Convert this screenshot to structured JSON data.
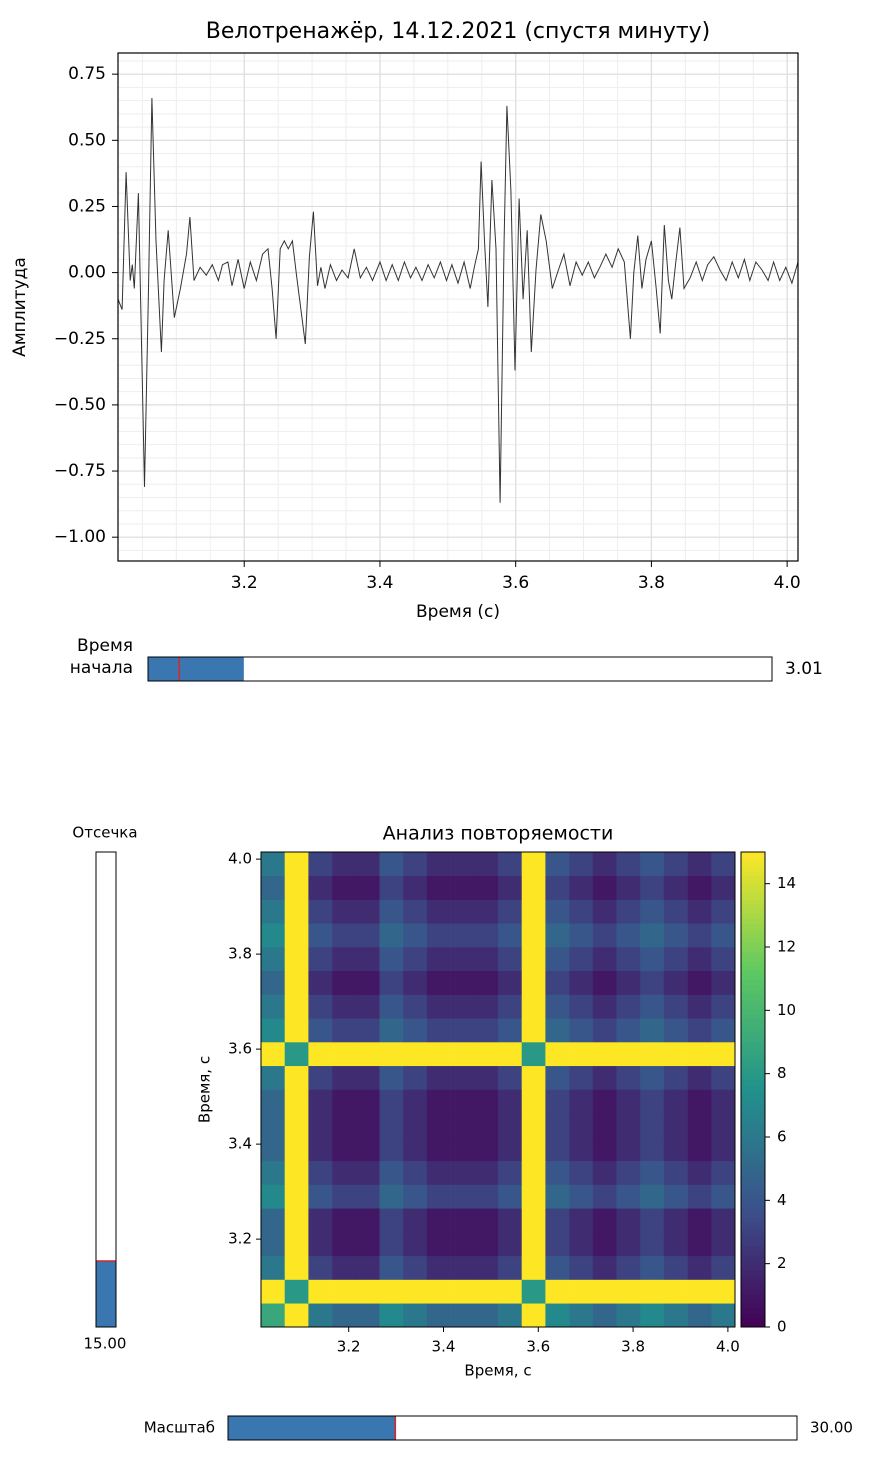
{
  "chart_data": [
    {
      "type": "line",
      "title": "Велотренажёр, 14.12.2021 (спустя минуту)",
      "x_label": "Время (с)",
      "y_label": "Амплитуда",
      "color": "#333333",
      "x": [
        3.014,
        3.02,
        3.026,
        3.032,
        3.035,
        3.038,
        3.044,
        3.053,
        3.059,
        3.064,
        3.07,
        3.078,
        3.082,
        3.088,
        3.097,
        3.106,
        3.115,
        3.12,
        3.126,
        3.135,
        3.144,
        3.153,
        3.162,
        3.168,
        3.176,
        3.182,
        3.191,
        3.2,
        3.209,
        3.218,
        3.227,
        3.235,
        3.241,
        3.247,
        3.253,
        3.259,
        3.265,
        3.271,
        3.277,
        3.282,
        3.29,
        3.296,
        3.302,
        3.308,
        3.313,
        3.319,
        3.327,
        3.336,
        3.344,
        3.353,
        3.362,
        3.371,
        3.38,
        3.389,
        3.4,
        3.409,
        3.418,
        3.427,
        3.436,
        3.445,
        3.453,
        3.462,
        3.471,
        3.48,
        3.489,
        3.498,
        3.506,
        3.515,
        3.524,
        3.533,
        3.539,
        3.545,
        3.549,
        3.554,
        3.559,
        3.565,
        3.571,
        3.577,
        3.583,
        3.587,
        3.593,
        3.599,
        3.605,
        3.611,
        3.617,
        3.623,
        3.63,
        3.637,
        3.645,
        3.654,
        3.663,
        3.671,
        3.68,
        3.689,
        3.698,
        3.707,
        3.716,
        3.724,
        3.733,
        3.742,
        3.751,
        3.76,
        3.769,
        3.774,
        3.78,
        3.786,
        3.792,
        3.8,
        3.807,
        3.813,
        3.819,
        3.825,
        3.83,
        3.836,
        3.842,
        3.848,
        3.857,
        3.866,
        3.875,
        3.883,
        3.892,
        3.901,
        3.91,
        3.919,
        3.928,
        3.937,
        3.945,
        3.954,
        3.963,
        3.972,
        3.98,
        3.989,
        3.998,
        4.007,
        4.016
      ],
      "y": [
        -0.1,
        -0.14,
        0.38,
        -0.03,
        0.03,
        -0.06,
        0.3,
        -0.81,
        -0.06,
        0.66,
        0.12,
        -0.3,
        -0.03,
        0.16,
        -0.17,
        -0.06,
        0.07,
        0.21,
        -0.03,
        0.02,
        -0.01,
        0.03,
        -0.03,
        0.03,
        0.04,
        -0.05,
        0.05,
        -0.06,
        0.04,
        -0.03,
        0.07,
        0.09,
        -0.06,
        -0.25,
        0.09,
        0.12,
        0.09,
        0.12,
        -0.01,
        -0.11,
        -0.27,
        0.06,
        0.23,
        -0.05,
        0.02,
        -0.06,
        0.03,
        -0.03,
        0.01,
        -0.02,
        0.09,
        -0.02,
        0.02,
        -0.03,
        0.04,
        -0.03,
        0.03,
        -0.03,
        0.04,
        -0.02,
        0.02,
        -0.03,
        0.03,
        -0.02,
        0.04,
        -0.03,
        0.03,
        -0.04,
        0.04,
        -0.06,
        0.02,
        0.09,
        0.42,
        0.12,
        -0.13,
        0.35,
        0.09,
        -0.87,
        0.12,
        0.63,
        0.31,
        -0.37,
        0.28,
        -0.1,
        0.16,
        -0.3,
        0.01,
        0.22,
        0.12,
        -0.06,
        0.01,
        0.07,
        -0.05,
        0.04,
        -0.01,
        0.04,
        -0.02,
        0.02,
        0.07,
        0.02,
        0.09,
        0.04,
        -0.25,
        0.0,
        0.14,
        -0.06,
        0.05,
        0.12,
        -0.06,
        -0.23,
        0.18,
        -0.03,
        -0.1,
        0.04,
        0.17,
        -0.06,
        -0.02,
        0.04,
        -0.03,
        0.03,
        0.06,
        0.01,
        -0.03,
        0.04,
        -0.02,
        0.05,
        -0.03,
        0.04,
        0.01,
        -0.03,
        0.04,
        -0.03,
        0.02,
        -0.04,
        0.04
      ],
      "xlim": [
        3.014,
        4.016
      ],
      "ylim": [
        -1.09,
        0.83
      ],
      "xticks": [
        3.2,
        3.4,
        3.6,
        3.8,
        {
          "value": 4.0,
          "label": "4.0"
        }
      ],
      "yticks": [
        {
          "value": 0.75,
          "label": "0.75"
        },
        {
          "value": 0.5,
          "label": "0.50"
        },
        {
          "value": 0.25,
          "label": "0.25"
        },
        {
          "value": 0,
          "label": "0.00"
        },
        {
          "value": -0.25,
          "label": "−0.25"
        },
        {
          "value": -0.5,
          "label": "−0.50"
        },
        {
          "value": -0.75,
          "label": "−0.75"
        },
        {
          "value": -1,
          "label": "−1.00"
        }
      ],
      "grid": true,
      "minor_step_x": 0.05,
      "minor_step_y": 0.05
    },
    {
      "type": "heatmap",
      "title": "Анализ повторяемости",
      "x_label": "Время, с",
      "y_label": "Время, с",
      "colormap": "viridis",
      "xlim": [
        3.015,
        4.015
      ],
      "ylim": [
        3.015,
        4.015
      ],
      "clim": [
        0,
        15
      ],
      "xticks": [
        3.2,
        3.4,
        3.6,
        3.8,
        {
          "value": 4.0,
          "label": "4.0"
        }
      ],
      "yticks": [
        3.2,
        3.4,
        3.6,
        3.8,
        {
          "value": 4.0,
          "label": "4.0"
        }
      ],
      "cticks": [
        0,
        2,
        4,
        6,
        8,
        10,
        12,
        14
      ],
      "matrix": [
        [
          9,
          15,
          6,
          5,
          5,
          7,
          6,
          5,
          5,
          5,
          6,
          15,
          7,
          6,
          5,
          6,
          7,
          6,
          5,
          6
        ],
        [
          15,
          8,
          15,
          15,
          15,
          15,
          15,
          15,
          15,
          15,
          15,
          8,
          15,
          15,
          15,
          15,
          15,
          15,
          15,
          15
        ],
        [
          6,
          15,
          3,
          2,
          2,
          4,
          3,
          2,
          2,
          2,
          3,
          15,
          4,
          3,
          2,
          3,
          4,
          3,
          2,
          3
        ],
        [
          5,
          15,
          2,
          1,
          1,
          3,
          2,
          1,
          1,
          1,
          2,
          15,
          3,
          2,
          1,
          2,
          3,
          2,
          1,
          2
        ],
        [
          5,
          15,
          2,
          1,
          1,
          3,
          2,
          1,
          1,
          1,
          2,
          15,
          3,
          2,
          1,
          2,
          3,
          2,
          1,
          2
        ],
        [
          7,
          15,
          4,
          3,
          3,
          5,
          4,
          3,
          3,
          3,
          4,
          15,
          5,
          4,
          3,
          4,
          5,
          4,
          3,
          4
        ],
        [
          6,
          15,
          3,
          2,
          2,
          4,
          3,
          2,
          2,
          2,
          3,
          15,
          4,
          3,
          2,
          3,
          4,
          3,
          2,
          3
        ],
        [
          5,
          15,
          2,
          1,
          1,
          3,
          2,
          1,
          1,
          1,
          2,
          15,
          3,
          2,
          1,
          2,
          3,
          2,
          1,
          2
        ],
        [
          5,
          15,
          2,
          1,
          1,
          3,
          2,
          1,
          1,
          1,
          2,
          15,
          3,
          2,
          1,
          2,
          3,
          2,
          1,
          2
        ],
        [
          5,
          15,
          2,
          1,
          1,
          3,
          2,
          1,
          1,
          1,
          2,
          15,
          3,
          2,
          1,
          2,
          3,
          2,
          1,
          2
        ],
        [
          6,
          15,
          3,
          2,
          2,
          4,
          3,
          2,
          2,
          2,
          3,
          15,
          4,
          3,
          2,
          3,
          4,
          3,
          2,
          3
        ],
        [
          15,
          8,
          15,
          15,
          15,
          15,
          15,
          15,
          15,
          15,
          15,
          8,
          15,
          15,
          15,
          15,
          15,
          15,
          15,
          15
        ],
        [
          7,
          15,
          4,
          3,
          3,
          5,
          4,
          3,
          3,
          3,
          4,
          15,
          5,
          4,
          3,
          4,
          5,
          4,
          3,
          4
        ],
        [
          6,
          15,
          3,
          2,
          2,
          4,
          3,
          2,
          2,
          2,
          3,
          15,
          4,
          3,
          2,
          3,
          4,
          3,
          2,
          3
        ],
        [
          5,
          15,
          2,
          1,
          1,
          3,
          2,
          1,
          1,
          1,
          2,
          15,
          3,
          2,
          1,
          2,
          3,
          2,
          1,
          2
        ],
        [
          6,
          15,
          3,
          2,
          2,
          4,
          3,
          2,
          2,
          2,
          3,
          15,
          4,
          3,
          2,
          3,
          4,
          3,
          2,
          3
        ],
        [
          7,
          15,
          4,
          3,
          3,
          5,
          4,
          3,
          3,
          3,
          4,
          15,
          5,
          4,
          3,
          4,
          5,
          4,
          3,
          4
        ],
        [
          6,
          15,
          3,
          2,
          2,
          4,
          3,
          2,
          2,
          2,
          3,
          15,
          4,
          3,
          2,
          3,
          4,
          3,
          2,
          3
        ],
        [
          5,
          15,
          2,
          1,
          1,
          3,
          2,
          1,
          1,
          1,
          2,
          15,
          3,
          2,
          1,
          2,
          3,
          2,
          1,
          2
        ],
        [
          6,
          15,
          3,
          2,
          2,
          4,
          3,
          2,
          2,
          2,
          3,
          15,
          4,
          3,
          2,
          3,
          4,
          3,
          2,
          3
        ]
      ]
    }
  ],
  "sliders": [
    {
      "label": [
        "Время",
        "начала"
      ],
      "value": 3.01,
      "min": 0,
      "max": 19.6,
      "init": 0.98,
      "color": "#3a76af"
    },
    {
      "label": [
        "Отсечка"
      ],
      "value": 15,
      "value_label": "15.00",
      "min": 0,
      "max": 108,
      "init": 15,
      "color": "#3a76af"
    },
    {
      "label": [
        "Масштаб"
      ],
      "value": 30,
      "value_label": "30.00",
      "min": 0,
      "max": 102,
      "init": 30,
      "color": "#3a76af"
    }
  ]
}
